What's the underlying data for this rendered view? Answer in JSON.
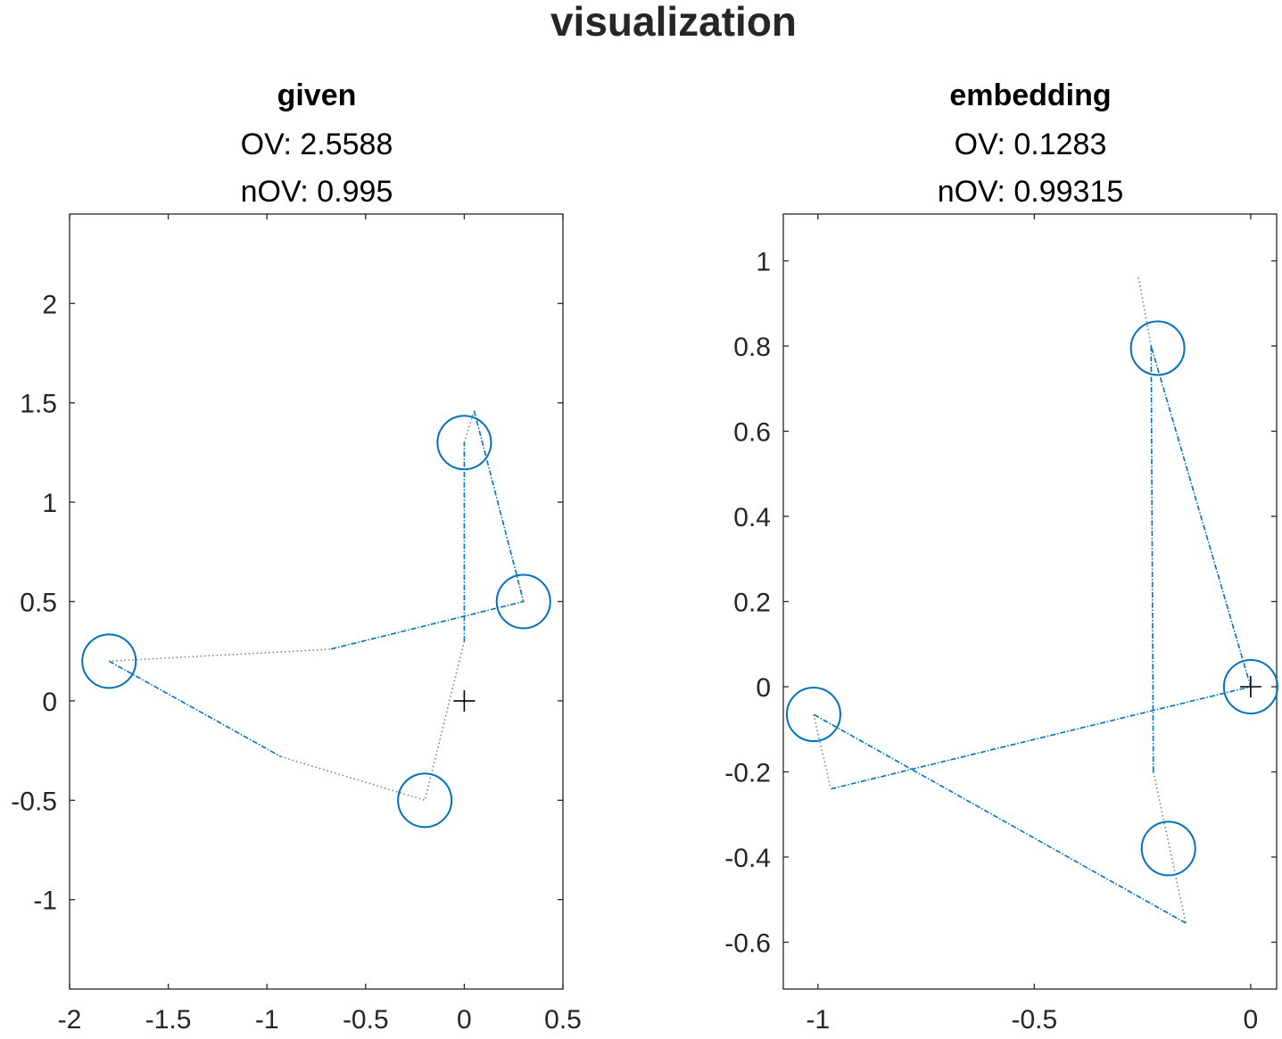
{
  "figure": {
    "title": "visualization"
  },
  "colors": {
    "blue": "#0072bd",
    "gray": "#7f7f7f",
    "marker": "#000000",
    "axis": "#262626"
  },
  "chart_data": [
    {
      "type": "scatter",
      "title": "given",
      "subtitle_lines": [
        "OV: 2.5588",
        "nOV: 0.995"
      ],
      "xlabel": "",
      "ylabel": "",
      "xlim": [
        -2,
        0.5
      ],
      "ylim": [
        -1.45,
        2.45
      ],
      "xticks": [
        -2,
        -1.5,
        -1,
        -0.5,
        0,
        0.5
      ],
      "xtick_labels": [
        "-2",
        "-1.5",
        "-1",
        "-0.5",
        "0",
        "0.5"
      ],
      "yticks": [
        -1,
        -0.5,
        0,
        0.5,
        1,
        1.5,
        2
      ],
      "ytick_labels": [
        "-1",
        "-0.5",
        "0",
        "0.5",
        "1",
        "1.5",
        "2"
      ],
      "grid": false,
      "circles": [
        {
          "x": -1.8,
          "y": 0.2
        },
        {
          "x": 0.0,
          "y": 1.3
        },
        {
          "x": 0.3,
          "y": 0.5
        },
        {
          "x": -0.2,
          "y": -0.5
        }
      ],
      "center_marker": {
        "x": 0.0,
        "y": 0.0,
        "symbol": "+"
      },
      "lines": [
        {
          "style": "dashdot",
          "color": "blue",
          "points": [
            [
              -1.8,
              0.2
            ],
            [
              -0.93,
              -0.28
            ]
          ]
        },
        {
          "style": "dotted",
          "color": "gray",
          "points": [
            [
              -0.93,
              -0.28
            ],
            [
              -0.2,
              -0.5
            ],
            [
              0.0,
              0.3
            ]
          ]
        },
        {
          "style": "dashdot",
          "color": "blue",
          "points": [
            [
              0.0,
              0.3
            ],
            [
              0.0,
              1.3
            ]
          ]
        },
        {
          "style": "dotted",
          "color": "gray",
          "points": [
            [
              0.0,
              1.3
            ],
            [
              0.05,
              1.46
            ]
          ]
        },
        {
          "style": "dashdot",
          "color": "blue",
          "points": [
            [
              0.05,
              1.46
            ],
            [
              0.3,
              0.5
            ],
            [
              -0.68,
              0.26
            ]
          ]
        },
        {
          "style": "dotted",
          "color": "gray",
          "points": [
            [
              -0.68,
              0.26
            ],
            [
              -1.8,
              0.2
            ]
          ]
        }
      ]
    },
    {
      "type": "scatter",
      "title": "embedding",
      "subtitle_lines": [
        "OV: 0.1283",
        "nOV: 0.99315"
      ],
      "xlabel": "",
      "ylabel": "",
      "xlim": [
        -1.08,
        0.06
      ],
      "ylim": [
        -0.71,
        1.11
      ],
      "xticks": [
        -1,
        -0.5,
        0
      ],
      "xtick_labels": [
        "-1",
        "-0.5",
        "0"
      ],
      "yticks": [
        -0.6,
        -0.4,
        -0.2,
        0,
        0.2,
        0.4,
        0.6,
        0.8,
        1
      ],
      "ytick_labels": [
        "-0.6",
        "-0.4",
        "-0.2",
        "0",
        "0.2",
        "0.4",
        "0.6",
        "0.8",
        "1"
      ],
      "grid": false,
      "circles": [
        {
          "x": -1.01,
          "y": -0.065
        },
        {
          "x": -0.215,
          "y": 0.795
        },
        {
          "x": 0.0,
          "y": 0.0
        },
        {
          "x": -0.19,
          "y": -0.38
        }
      ],
      "center_marker": {
        "x": 0.0,
        "y": 0.0,
        "symbol": "+"
      },
      "lines": [
        {
          "style": "dotted",
          "color": "gray",
          "points": [
            [
              -1.01,
              -0.065
            ],
            [
              -0.97,
              -0.24
            ]
          ]
        },
        {
          "style": "dashdot",
          "color": "blue",
          "points": [
            [
              -0.97,
              -0.24
            ],
            [
              0.0,
              0.0
            ],
            [
              -0.23,
              0.8
            ]
          ]
        },
        {
          "style": "dotted",
          "color": "gray",
          "points": [
            [
              -0.23,
              0.8
            ],
            [
              -0.26,
              0.965
            ]
          ]
        },
        {
          "style": "dashdot",
          "color": "blue",
          "points": [
            [
              -0.23,
              0.8
            ],
            [
              -0.225,
              -0.2
            ]
          ]
        },
        {
          "style": "dotted",
          "color": "gray",
          "points": [
            [
              -0.225,
              -0.2
            ],
            [
              -0.15,
              -0.555
            ]
          ]
        },
        {
          "style": "dashdot",
          "color": "blue",
          "points": [
            [
              -0.15,
              -0.555
            ],
            [
              -1.01,
              -0.065
            ]
          ]
        }
      ]
    }
  ]
}
